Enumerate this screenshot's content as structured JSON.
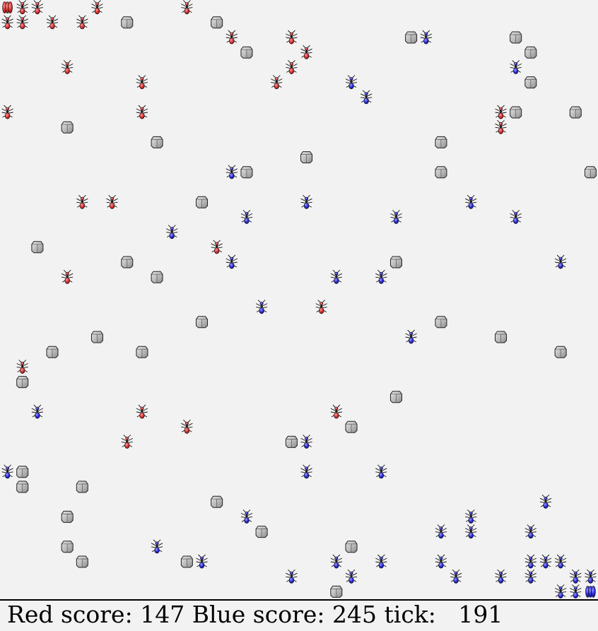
{
  "game": {
    "grid": {
      "cols": 40,
      "rows": 40
    },
    "colors": {
      "red": "#d63030",
      "blue": "#2a2ad6",
      "rock": "#bdbdbd",
      "bg": "#f2f2f2"
    },
    "red_nest": [
      [
        0,
        0
      ]
    ],
    "blue_nest": [
      [
        39,
        39
      ]
    ],
    "red_ants": [
      [
        1,
        0
      ],
      [
        2,
        0
      ],
      [
        6,
        0
      ],
      [
        12,
        0
      ],
      [
        0,
        1
      ],
      [
        1,
        1
      ],
      [
        3,
        1
      ],
      [
        5,
        1
      ],
      [
        15,
        2
      ],
      [
        19,
        2
      ],
      [
        20,
        3
      ],
      [
        19,
        4
      ],
      [
        4,
        4
      ],
      [
        9,
        5
      ],
      [
        18,
        5
      ],
      [
        0,
        7
      ],
      [
        9,
        7
      ],
      [
        33,
        7
      ],
      [
        33,
        8
      ],
      [
        5,
        13
      ],
      [
        7,
        13
      ],
      [
        14,
        16
      ],
      [
        4,
        18
      ],
      [
        21,
        20
      ],
      [
        1,
        24
      ],
      [
        9,
        27
      ],
      [
        22,
        27
      ],
      [
        12,
        28
      ],
      [
        8,
        29
      ]
    ],
    "blue_ants": [
      [
        28,
        2
      ],
      [
        34,
        4
      ],
      [
        23,
        5
      ],
      [
        24,
        6
      ],
      [
        15,
        11
      ],
      [
        20,
        13
      ],
      [
        16,
        14
      ],
      [
        26,
        14
      ],
      [
        31,
        13
      ],
      [
        34,
        14
      ],
      [
        11,
        15
      ],
      [
        15,
        17
      ],
      [
        22,
        18
      ],
      [
        25,
        18
      ],
      [
        37,
        17
      ],
      [
        17,
        20
      ],
      [
        27,
        22
      ],
      [
        2,
        27
      ],
      [
        20,
        29
      ],
      [
        0,
        31
      ],
      [
        20,
        31
      ],
      [
        25,
        31
      ],
      [
        36,
        33
      ],
      [
        16,
        34
      ],
      [
        31,
        34
      ],
      [
        29,
        35
      ],
      [
        31,
        35
      ],
      [
        35,
        35
      ],
      [
        10,
        36
      ],
      [
        13,
        37
      ],
      [
        22,
        37
      ],
      [
        25,
        37
      ],
      [
        29,
        37
      ],
      [
        35,
        37
      ],
      [
        36,
        37
      ],
      [
        37,
        37
      ],
      [
        19,
        38
      ],
      [
        23,
        38
      ],
      [
        30,
        38
      ],
      [
        33,
        38
      ],
      [
        35,
        38
      ],
      [
        38,
        38
      ],
      [
        39,
        38
      ],
      [
        37,
        39
      ],
      [
        38,
        39
      ]
    ],
    "rocks": [
      [
        8,
        1
      ],
      [
        14,
        1
      ],
      [
        27,
        2
      ],
      [
        34,
        2
      ],
      [
        16,
        3
      ],
      [
        35,
        3
      ],
      [
        35,
        5
      ],
      [
        34,
        7
      ],
      [
        38,
        7
      ],
      [
        4,
        8
      ],
      [
        10,
        9
      ],
      [
        29,
        9
      ],
      [
        20,
        10
      ],
      [
        16,
        11
      ],
      [
        29,
        11
      ],
      [
        39,
        11
      ],
      [
        13,
        13
      ],
      [
        2,
        16
      ],
      [
        8,
        17
      ],
      [
        10,
        18
      ],
      [
        26,
        17
      ],
      [
        13,
        21
      ],
      [
        29,
        21
      ],
      [
        6,
        22
      ],
      [
        33,
        22
      ],
      [
        3,
        23
      ],
      [
        9,
        23
      ],
      [
        37,
        23
      ],
      [
        1,
        25
      ],
      [
        26,
        26
      ],
      [
        23,
        28
      ],
      [
        19,
        29
      ],
      [
        1,
        31
      ],
      [
        1,
        32
      ],
      [
        5,
        32
      ],
      [
        14,
        33
      ],
      [
        4,
        34
      ],
      [
        17,
        35
      ],
      [
        4,
        36
      ],
      [
        23,
        36
      ],
      [
        5,
        37
      ],
      [
        12,
        37
      ],
      [
        22,
        39
      ]
    ]
  },
  "status": {
    "red_label": "Red score:",
    "red_score": "147",
    "blue_label": "Blue score:",
    "blue_score": "245",
    "tick_label": "tick:",
    "tick_value": "191"
  }
}
